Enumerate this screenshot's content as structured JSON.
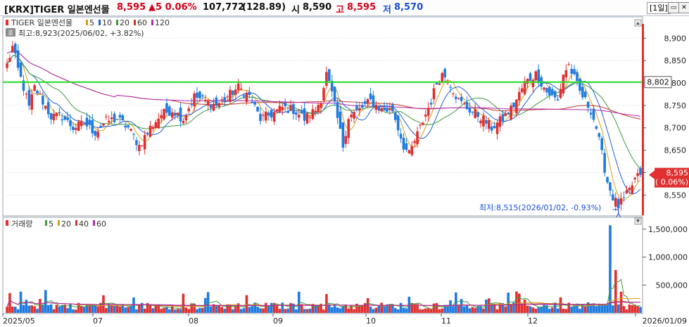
{
  "header": {
    "code_name": "[KRX]TIGER 일본엔선물",
    "price": "8,595",
    "change": "▲5 0.06%",
    "volume": "107,772",
    "volume_change": "(128.89)",
    "open_label": "시",
    "open": "8,590",
    "high_label": "고",
    "high": "8,595",
    "low_label": "저",
    "low": "8,570",
    "period": "[1일]"
  },
  "price_panel": {
    "legend_name": "TIGER 일본엔선물",
    "ma_labels": [
      "5",
      "10",
      "20",
      "60",
      "120"
    ],
    "ma_colors": [
      "#d4a017",
      "#1f5fd6",
      "#3c9a3c",
      "#c0392b",
      "#b02ab0"
    ],
    "high_note": "최고:8,923(2025/06/02, +3.82%)",
    "low_note": "최저:8,515(2026/01/02, -0.93%)",
    "line_value": "8,802",
    "current_price_label": "8,595",
    "current_change_label": "( 0.06%)",
    "y_ticks": [
      "8,900",
      "8,850",
      "8,800",
      "8,750",
      "8,700",
      "8,650",
      "8,600",
      "8,550"
    ],
    "extra_icon_glyph": "호"
  },
  "volume_panel": {
    "legend_name": "거래량",
    "ma_labels": [
      "5",
      "20",
      "40",
      "60"
    ],
    "ma_colors": [
      "#3c9a3c",
      "#d4a017",
      "#c0392b",
      "#b02ab0"
    ],
    "y_ticks": [
      "1,500,000",
      "1,000,000",
      "500,000"
    ]
  },
  "x_axis": {
    "labels": [
      "2025/05",
      "07",
      "08",
      "09",
      "10",
      "11",
      "12",
      "2026/01/09"
    ]
  },
  "colors": {
    "up": "#e03030",
    "down": "#1e7be0",
    "horizontal_line": "#22dd22",
    "current_bar": "#e03030"
  },
  "chart_data": {
    "type": "candlestick",
    "price_range": [
      8505,
      8935
    ],
    "volume_range": [
      0,
      1650000
    ],
    "horizontal_line_value": 8802,
    "high": {
      "value": 8923,
      "date": "2025/06/02"
    },
    "low": {
      "value": 8515,
      "date": "2026/01/02"
    },
    "keypoints": [
      [
        0,
        8840
      ],
      [
        2,
        8880
      ],
      [
        4,
        8830
      ],
      [
        6,
        8790
      ],
      [
        8,
        8745
      ],
      [
        10,
        8790
      ],
      [
        12,
        8770
      ],
      [
        16,
        8725
      ],
      [
        20,
        8725
      ],
      [
        24,
        8700
      ],
      [
        28,
        8710
      ],
      [
        32,
        8690
      ],
      [
        36,
        8715
      ],
      [
        40,
        8720
      ],
      [
        44,
        8700
      ],
      [
        48,
        8660
      ],
      [
        52,
        8700
      ],
      [
        56,
        8730
      ],
      [
        60,
        8740
      ],
      [
        64,
        8720
      ],
      [
        68,
        8770
      ],
      [
        72,
        8760
      ],
      [
        76,
        8750
      ],
      [
        80,
        8770
      ],
      [
        84,
        8790
      ],
      [
        88,
        8770
      ],
      [
        92,
        8720
      ],
      [
        96,
        8730
      ],
      [
        100,
        8745
      ],
      [
        104,
        8740
      ],
      [
        108,
        8720
      ],
      [
        112,
        8740
      ],
      [
        114,
        8765
      ],
      [
        116,
        8820
      ],
      [
        118,
        8775
      ],
      [
        120,
        8720
      ],
      [
        122,
        8660
      ],
      [
        124,
        8725
      ],
      [
        128,
        8740
      ],
      [
        132,
        8760
      ],
      [
        136,
        8740
      ],
      [
        140,
        8740
      ],
      [
        144,
        8660
      ],
      [
        146,
        8640
      ],
      [
        150,
        8700
      ],
      [
        154,
        8760
      ],
      [
        156,
        8800
      ],
      [
        158,
        8820
      ],
      [
        160,
        8810
      ],
      [
        164,
        8760
      ],
      [
        168,
        8740
      ],
      [
        172,
        8725
      ],
      [
        176,
        8700
      ],
      [
        180,
        8720
      ],
      [
        184,
        8750
      ],
      [
        188,
        8800
      ],
      [
        192,
        8820
      ],
      [
        194,
        8800
      ],
      [
        196,
        8780
      ],
      [
        200,
        8760
      ],
      [
        202,
        8820
      ],
      [
        204,
        8840
      ],
      [
        206,
        8810
      ],
      [
        208,
        8780
      ],
      [
        210,
        8760
      ],
      [
        212,
        8740
      ],
      [
        214,
        8700
      ],
      [
        216,
        8640
      ],
      [
        218,
        8580
      ],
      [
        220,
        8545
      ],
      [
        222,
        8525
      ],
      [
        224,
        8540
      ],
      [
        226,
        8560
      ],
      [
        228,
        8585
      ],
      [
        230,
        8595
      ]
    ],
    "volume_spikes": [
      [
        219,
        1570000
      ],
      [
        221,
        770000
      ],
      [
        223,
        380000
      ],
      [
        14,
        410000
      ],
      [
        146,
        290000
      ],
      [
        165,
        250000
      ],
      [
        174,
        240000
      ],
      [
        230,
        107772
      ]
    ]
  }
}
